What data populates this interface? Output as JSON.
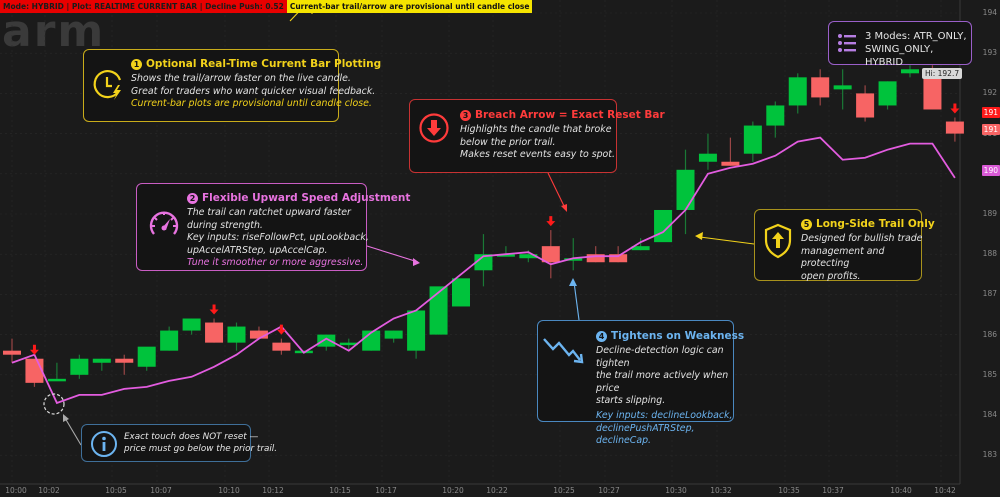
{
  "status_bar": {
    "mode_text": "Mode: HYBRID | Plot: REALTIME CURRENT BAR | Decline Push: 0.52",
    "notice_text": "Current-bar trail/arrow are provisional until candle close"
  },
  "watermark": "arm",
  "callouts": {
    "c1": {
      "number": "1",
      "title": "Optional Real-Time Current Bar Plotting",
      "lines": [
        "Shows the trail/arrow faster on the live candle.",
        "Great for traders who want quicker visual feedback."
      ],
      "note": "Current-bar plots are provisional until candle close.",
      "icon": "clock-lightning-icon",
      "color": "#f2d21b"
    },
    "c2": {
      "number": "2",
      "title": "Flexible Upward Speed Adjustment",
      "lines": [
        "The trail can ratchet upward faster",
        "during strength.",
        "Key inputs: riseFollowPct, upLookback,",
        "upAccelATRStep, upAccelCap."
      ],
      "note": "Tune it smoother or more aggressive.",
      "icon": "speedometer-icon",
      "color": "#e873e0"
    },
    "c3": {
      "number": "3",
      "title": "Breach Arrow = Exact Reset Bar",
      "lines": [
        "Highlights the candle that broke",
        "below the prior trail.",
        "Makes reset events easy to spot."
      ],
      "icon": "down-arrow-circle-icon",
      "color": "#ff3b3b"
    },
    "c4": {
      "number": "4",
      "title": "Tightens on Weakness",
      "lines": [
        "Decline-detection logic can tighten",
        "the trail more actively when price",
        "starts slipping."
      ],
      "note_lines": [
        "Key inputs: declineLookback,",
        "declinePushATRStep, declineCap."
      ],
      "icon": "zigzag-down-icon",
      "color": "#6cb4f0"
    },
    "c5": {
      "number": "5",
      "title": "Long-Side Trail Only",
      "lines": [
        "Designed for bullish trade",
        "management and protecting",
        "open profits."
      ],
      "icon": "shield-up-icon",
      "color": "#f2d21b"
    },
    "modes": {
      "lines": [
        "3 Modes: ATR_ONLY,",
        "SWING_ONLY, HYBRID"
      ],
      "icon": "list-icon",
      "color": "#a86bd6"
    },
    "touch": {
      "lines": [
        "Exact touch does NOT reset —",
        "price must go below the prior trail."
      ],
      "icon": "info-icon",
      "color": "#6cb4f0"
    }
  },
  "y_axis": {
    "ticks": [
      "194",
      "193",
      "192",
      "191",
      "190",
      "189",
      "188",
      "187",
      "186",
      "185",
      "184",
      "183"
    ]
  },
  "x_axis": {
    "ticks": [
      "10:00",
      "10:02",
      "10:05",
      "10:07",
      "10:10",
      "10:12",
      "10:15",
      "10:17",
      "10:20",
      "10:22",
      "10:25",
      "10:27",
      "10:30",
      "10:32",
      "10:35",
      "10:37",
      "10:40",
      "10:42"
    ]
  },
  "price_tags": {
    "last_high": "191",
    "last_close": "191",
    "trail": "190",
    "hi_label": "Hi: 192.7"
  },
  "colors": {
    "up": "#00c33c",
    "down": "#f76464",
    "trail": "#e35ce0",
    "arrow": "#ff1a1a",
    "background": "#1b1b1b",
    "grid": "#2a2a2a"
  },
  "chart_data": {
    "type": "candlestick",
    "title": "",
    "ylim": [
      182.7,
      194.3
    ],
    "candles": [
      {
        "o": 185.6,
        "h": 185.9,
        "l": 185.3,
        "c": 185.5
      },
      {
        "o": 185.4,
        "h": 185.4,
        "l": 184.7,
        "c": 184.8
      },
      {
        "o": 184.9,
        "h": 185.3,
        "l": 184.9,
        "c": 184.9
      },
      {
        "o": 185.0,
        "h": 185.5,
        "l": 184.9,
        "c": 185.4
      },
      {
        "o": 185.3,
        "h": 185.4,
        "l": 185.1,
        "c": 185.4
      },
      {
        "o": 185.4,
        "h": 185.5,
        "l": 185.0,
        "c": 185.3
      },
      {
        "o": 185.2,
        "h": 185.3,
        "l": 185.1,
        "c": 185.7
      },
      {
        "o": 185.6,
        "h": 186.2,
        "l": 185.6,
        "c": 186.1
      },
      {
        "o": 186.1,
        "h": 186.4,
        "l": 186.0,
        "c": 186.4
      },
      {
        "o": 186.3,
        "h": 186.4,
        "l": 185.8,
        "c": 185.8
      },
      {
        "o": 185.8,
        "h": 186.3,
        "l": 185.6,
        "c": 186.2
      },
      {
        "o": 186.1,
        "h": 186.2,
        "l": 185.9,
        "c": 185.9
      },
      {
        "o": 185.8,
        "h": 185.9,
        "l": 185.5,
        "c": 185.6
      },
      {
        "o": 185.6,
        "h": 185.6,
        "l": 185.6,
        "c": 185.6
      },
      {
        "o": 185.7,
        "h": 185.9,
        "l": 185.6,
        "c": 186.0
      },
      {
        "o": 185.8,
        "h": 185.9,
        "l": 185.6,
        "c": 185.8
      },
      {
        "o": 185.6,
        "h": 185.8,
        "l": 185.6,
        "c": 186.1
      },
      {
        "o": 185.9,
        "h": 186.1,
        "l": 185.8,
        "c": 186.1
      },
      {
        "o": 185.6,
        "h": 186.3,
        "l": 185.4,
        "c": 186.6
      },
      {
        "o": 186.0,
        "h": 186.6,
        "l": 186.0,
        "c": 187.2
      },
      {
        "o": 186.7,
        "h": 187.3,
        "l": 186.7,
        "c": 187.4
      },
      {
        "o": 187.6,
        "h": 188.5,
        "l": 187.2,
        "c": 188.0
      },
      {
        "o": 188.0,
        "h": 188.2,
        "l": 188.0,
        "c": 188.0
      },
      {
        "o": 187.9,
        "h": 188.1,
        "l": 187.8,
        "c": 188.0
      },
      {
        "o": 188.2,
        "h": 188.6,
        "l": 187.4,
        "c": 187.8
      },
      {
        "o": 187.9,
        "h": 188.4,
        "l": 187.6,
        "c": 187.9
      },
      {
        "o": 188.0,
        "h": 188.2,
        "l": 187.8,
        "c": 187.8
      },
      {
        "o": 188.0,
        "h": 188.2,
        "l": 187.8,
        "c": 187.8
      },
      {
        "o": 188.1,
        "h": 188.4,
        "l": 188.1,
        "c": 188.2
      },
      {
        "o": 188.3,
        "h": 188.3,
        "l": 188.3,
        "c": 189.1
      },
      {
        "o": 189.1,
        "h": 190.6,
        "l": 188.5,
        "c": 190.1
      },
      {
        "o": 190.3,
        "h": 191.0,
        "l": 190.1,
        "c": 190.5
      },
      {
        "o": 190.3,
        "h": 190.9,
        "l": 190.2,
        "c": 190.2
      },
      {
        "o": 190.5,
        "h": 191.3,
        "l": 190.3,
        "c": 191.2
      },
      {
        "o": 191.2,
        "h": 191.8,
        "l": 190.9,
        "c": 191.7
      },
      {
        "o": 191.7,
        "h": 192.5,
        "l": 191.5,
        "c": 192.4
      },
      {
        "o": 192.4,
        "h": 192.6,
        "l": 191.7,
        "c": 191.9
      },
      {
        "o": 192.1,
        "h": 192.6,
        "l": 191.6,
        "c": 192.2
      },
      {
        "o": 192.0,
        "h": 192.2,
        "l": 191.3,
        "c": 191.4
      },
      {
        "o": 191.7,
        "h": 192.3,
        "l": 191.6,
        "c": 192.3
      },
      {
        "o": 192.5,
        "h": 192.7,
        "l": 192.4,
        "c": 192.6
      },
      {
        "o": 192.4,
        "h": 192.7,
        "l": 191.6,
        "c": 191.6
      },
      {
        "o": 191.3,
        "h": 191.4,
        "l": 190.8,
        "c": 191.0
      }
    ],
    "trail": [
      185.3,
      185.5,
      184.3,
      184.5,
      184.5,
      184.65,
      184.7,
      184.85,
      184.95,
      185.2,
      185.5,
      185.9,
      186.2,
      185.55,
      185.9,
      185.6,
      186.05,
      186.4,
      186.6,
      187.05,
      187.5,
      187.95,
      188.0,
      188.05,
      187.75,
      187.9,
      187.95,
      187.95,
      188.3,
      188.55,
      189.1,
      190.0,
      190.15,
      190.25,
      190.45,
      190.8,
      190.9,
      190.35,
      190.4,
      190.6,
      190.75,
      190.75,
      189.9
    ],
    "breach_bars": [
      1,
      9,
      12,
      24,
      37,
      41,
      42
    ]
  }
}
